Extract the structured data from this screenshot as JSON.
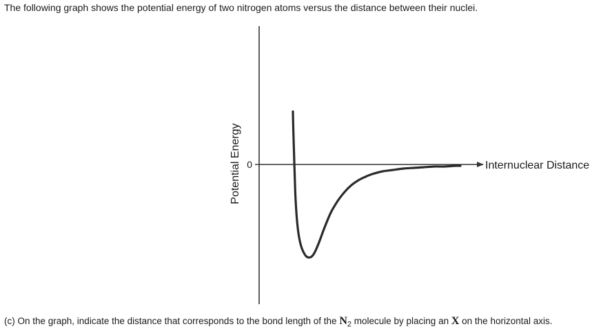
{
  "intro_text": "The following graph shows the potential energy of two nitrogen atoms versus the distance between their nuclei.",
  "question": {
    "prefix": "(c) On the graph, indicate the distance that corresponds to the bond length of the ",
    "molecule_symbol": "N",
    "molecule_subscript": "2",
    "middle": " molecule by placing an ",
    "mark_symbol": "X",
    "suffix": " on the horizontal axis."
  },
  "chart_data": {
    "type": "line",
    "xlabel": "Internuclear Distance",
    "ylabel": "Potential Energy",
    "y_tick_label": "0",
    "grid": false,
    "colors": {
      "curve": "#2a2a2a",
      "axis": "#333333"
    },
    "series": [
      {
        "x": [
          0.0,
          0.5,
          1.0,
          1.5,
          2.0,
          3.0,
          4.0,
          6.0,
          9.0,
          13.0,
          18.0,
          22.0,
          27.0,
          32.0,
          38.0,
          45.0,
          55.0,
          65.0,
          75.0,
          85.0,
          95.0,
          105.0,
          115.0,
          130.0,
          145.0,
          160.0,
          175.0,
          190.0,
          205.0,
          220.0,
          235.0,
          243.0
        ],
        "y": [
          77,
          54,
          37,
          20,
          3,
          -28,
          -53,
          -82,
          -106,
          -122,
          -132,
          -135,
          -134,
          -127,
          -113,
          -94,
          -70,
          -53,
          -40,
          -30,
          -23,
          -18,
          -14,
          -10,
          -8,
          -6,
          -5,
          -4,
          -3,
          -3,
          -2,
          -2
        ]
      }
    ]
  }
}
